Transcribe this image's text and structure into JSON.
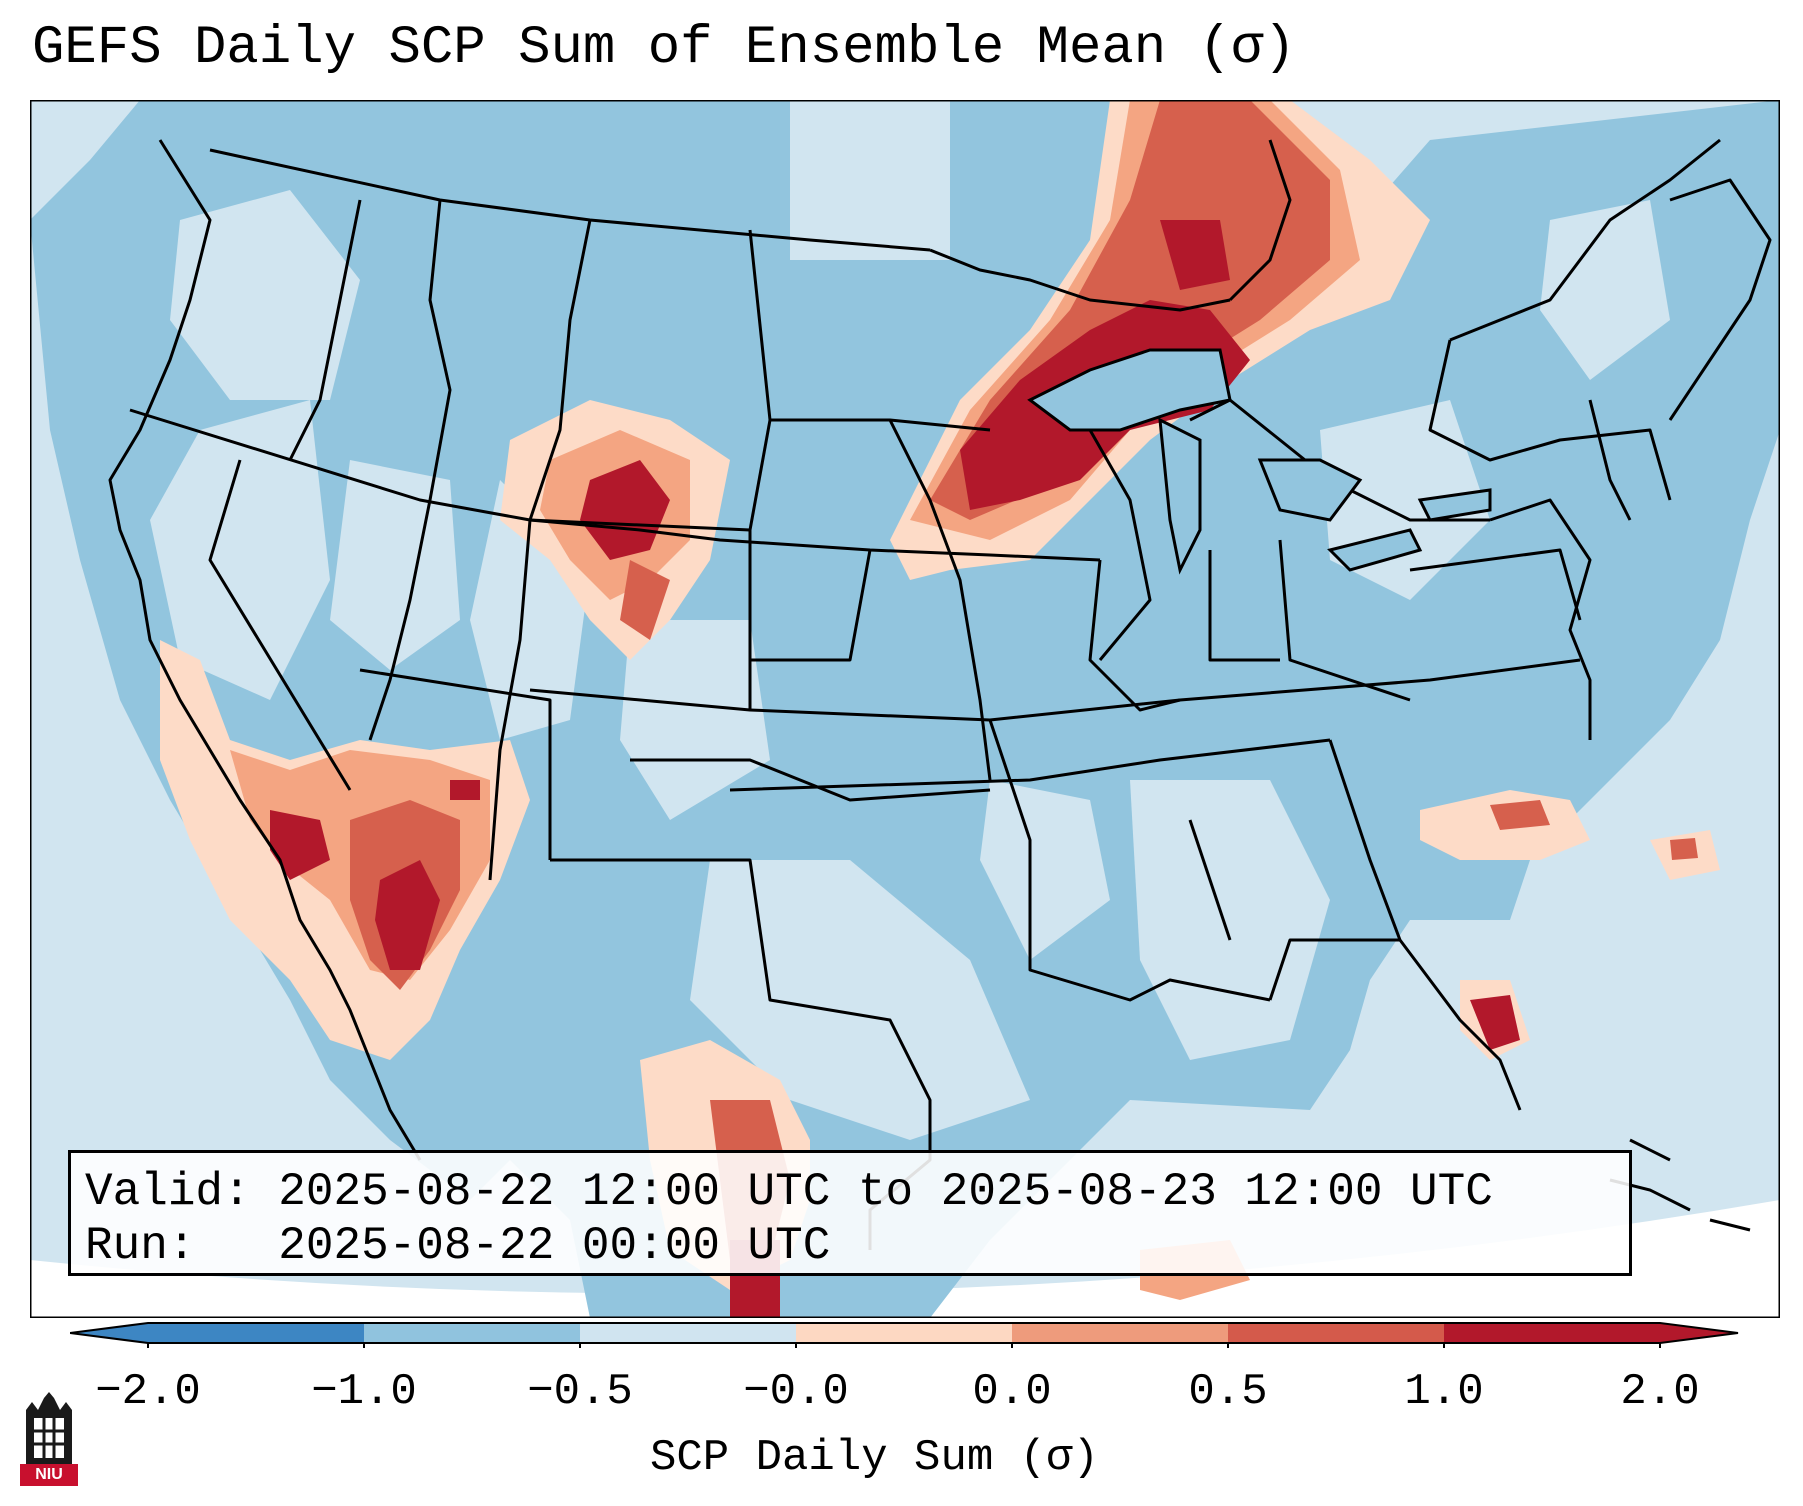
{
  "title": "GEFS Daily SCP Sum of Ensemble Mean (σ)",
  "info": {
    "valid_label": "Valid:",
    "valid_range": "2025-08-22 12:00 UTC to 2025-08-23 12:00 UTC",
    "run_label": "Run:",
    "run_time": "2025-08-22 00:00 UTC"
  },
  "colorbar": {
    "label": "SCP Daily Sum (σ)",
    "ticks": [
      "−2.0",
      "−1.0",
      "−0.5",
      "−0.0",
      "0.0",
      "0.5",
      "1.0",
      "2.0"
    ],
    "colors": [
      "#3d86c3",
      "#90c3de",
      "#d0e4f0",
      "#fdd8c2",
      "#ee9b7c",
      "#d45a4b",
      "#b2182b"
    ],
    "extend": "both"
  },
  "map": {
    "region": "Contiguous United States",
    "field": "SCP daily sum anomaly (σ)",
    "colors": {
      "ocean_background": "#d1e5f0",
      "land_below_normal": "#92c5de",
      "slight_positive": "#fddbc7",
      "moderate_positive": "#f4a582",
      "high_positive": "#d6604d",
      "extreme_positive": "#b2182b"
    }
  },
  "logo": {
    "text": "NIU"
  }
}
